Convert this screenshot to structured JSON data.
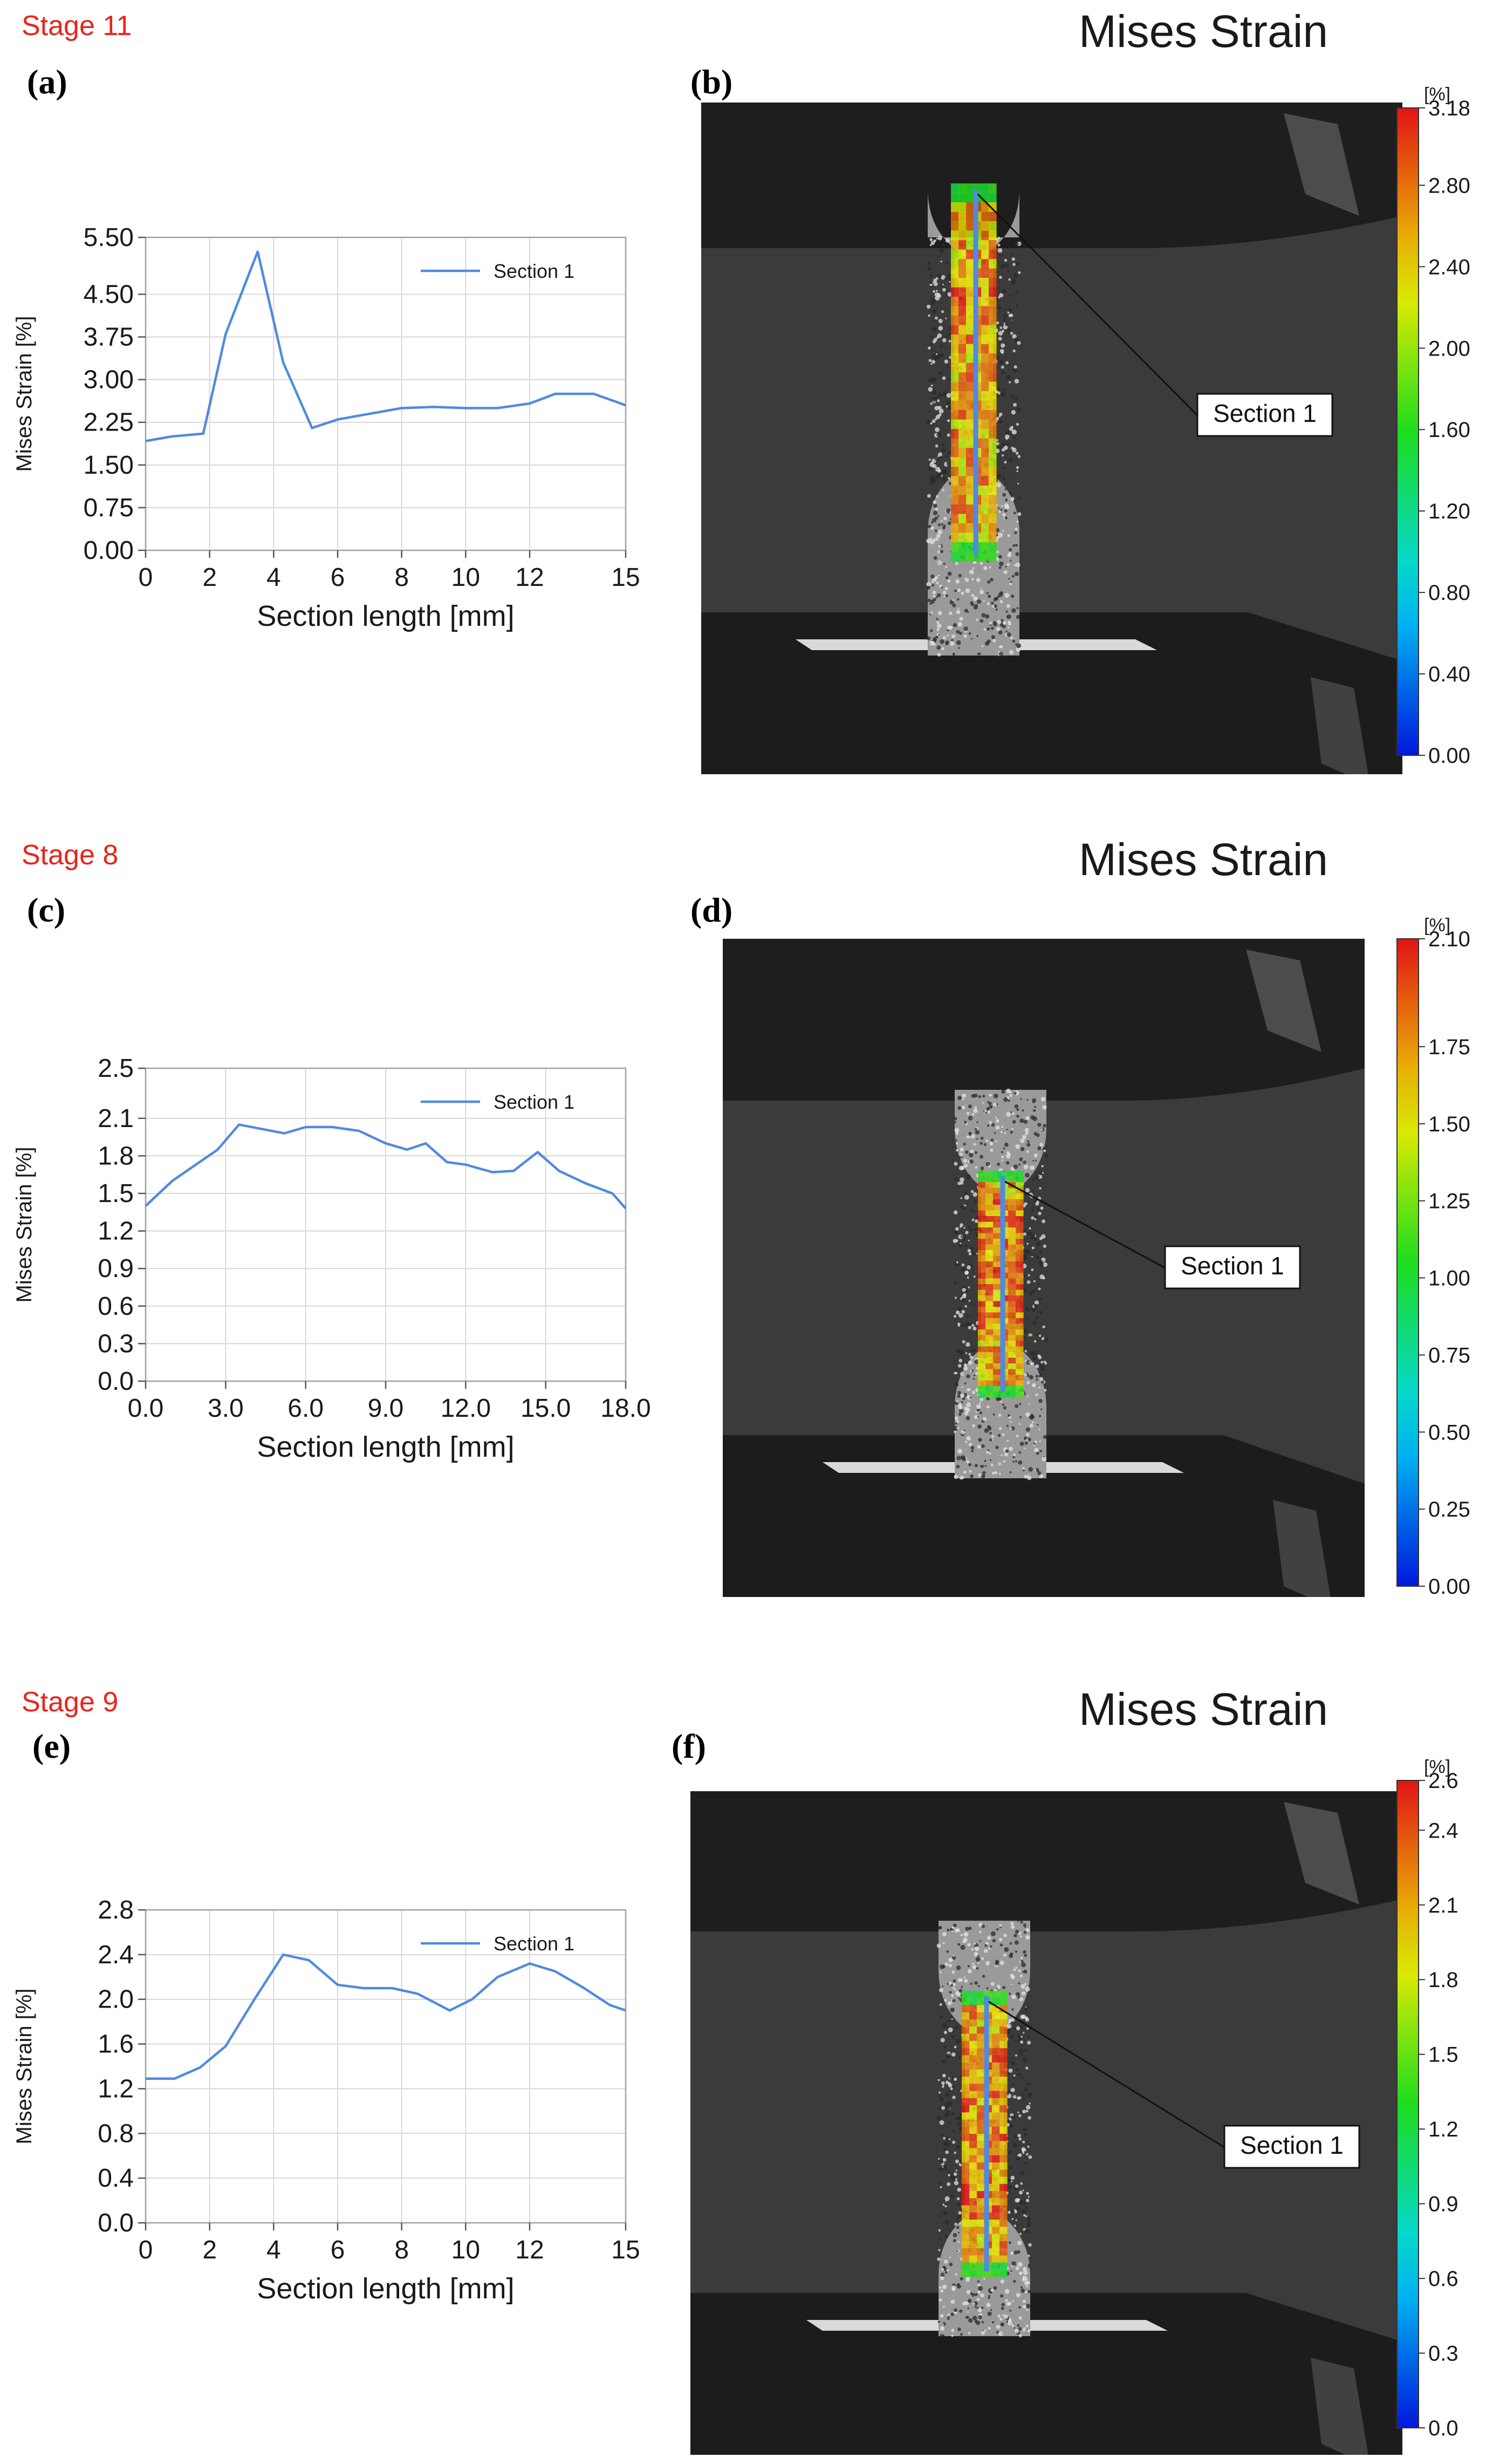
{
  "panels": [
    {
      "stage": "Stage 11",
      "chart_letter": "(a)",
      "image_letter": "(b)",
      "image_title": "Mises Strain",
      "section_callout": "Section 1",
      "colorbar": {
        "unit": "[%]",
        "ticks": [
          "3.18",
          "2.80",
          "2.40",
          "2.00",
          "1.60",
          "1.20",
          "0.80",
          "0.40",
          "0.00"
        ],
        "min": 0,
        "max": 3.18
      }
    },
    {
      "stage": "Stage 8",
      "chart_letter": "(c)",
      "image_letter": "(d)",
      "image_title": "Mises Strain",
      "section_callout": "Section 1",
      "colorbar": {
        "unit": "[%]",
        "ticks": [
          "2.10",
          "1.75",
          "1.50",
          "1.25",
          "1.00",
          "0.75",
          "0.50",
          "0.25",
          "0.00"
        ],
        "min": 0,
        "max": 2.1
      }
    },
    {
      "stage": "Stage 9",
      "chart_letter": "(e)",
      "image_letter": "(f)",
      "image_title": "Mises Strain",
      "section_callout": "Section 1",
      "colorbar": {
        "unit": "[%]",
        "ticks": [
          "2.6",
          "2.4",
          "2.1",
          "1.8",
          "1.5",
          "1.2",
          "0.9",
          "0.6",
          "0.3",
          "0.0"
        ],
        "min": 0,
        "max": 2.6
      }
    }
  ],
  "colors": {
    "line": "#4f8ae0",
    "stage_label": "#e8241c"
  },
  "chart_data": [
    {
      "type": "line",
      "xlabel": "Section length [mm]",
      "ylabel": "Mises Strain [%]",
      "xlim": [
        0,
        15
      ],
      "ylim": [
        0,
        5.5
      ],
      "xticks": [
        "0",
        "2",
        "4",
        "6",
        "8",
        "10",
        "12",
        "15"
      ],
      "xtick_values": [
        0,
        2,
        4,
        6,
        8,
        10,
        12,
        15
      ],
      "yticks": [
        "0.00",
        "0.75",
        "1.50",
        "2.25",
        "3.00",
        "3.75",
        "4.50",
        "5.50"
      ],
      "ytick_values": [
        0,
        0.75,
        1.5,
        2.25,
        3.0,
        3.75,
        4.5,
        5.5
      ],
      "legend_position": "top-right",
      "grid": true,
      "series": [
        {
          "name": "Section 1",
          "x": [
            0,
            0.8,
            1.8,
            2.5,
            3.5,
            4.3,
            5.2,
            6.0,
            7.0,
            8.0,
            9.0,
            10.0,
            11.0,
            12.0,
            12.8,
            14.0,
            15.0
          ],
          "y": [
            1.92,
            2.0,
            2.05,
            3.8,
            5.25,
            3.3,
            2.15,
            2.3,
            2.4,
            2.5,
            2.52,
            2.5,
            2.5,
            2.58,
            2.75,
            2.75,
            2.55
          ]
        }
      ]
    },
    {
      "type": "line",
      "xlabel": "Section length [mm]",
      "ylabel": "Mises Strain [%]",
      "xlim": [
        0,
        18
      ],
      "ylim": [
        0,
        2.5
      ],
      "xticks": [
        "0.0",
        "3.0",
        "6.0",
        "9.0",
        "12.0",
        "15.0",
        "18.0"
      ],
      "xtick_values": [
        0,
        3,
        6,
        9,
        12,
        15,
        18
      ],
      "yticks": [
        "0.0",
        "0.3",
        "0.6",
        "0.9",
        "1.2",
        "1.5",
        "1.8",
        "2.1",
        "2.5"
      ],
      "ytick_values": [
        0,
        0.3,
        0.6,
        0.9,
        1.2,
        1.5,
        1.8,
        2.1,
        2.5
      ],
      "legend_position": "top-right",
      "grid": true,
      "series": [
        {
          "name": "Section 1",
          "x": [
            0,
            1.0,
            2.7,
            3.5,
            5.2,
            6.0,
            7.0,
            8.0,
            9.0,
            9.8,
            10.5,
            11.3,
            12.0,
            13.0,
            13.8,
            14.7,
            15.5,
            16.5,
            17.5,
            18.0
          ],
          "y": [
            1.4,
            1.6,
            1.85,
            2.05,
            1.98,
            2.03,
            2.03,
            2.0,
            1.9,
            1.85,
            1.9,
            1.75,
            1.73,
            1.67,
            1.68,
            1.83,
            1.68,
            1.58,
            1.5,
            1.38
          ]
        }
      ]
    },
    {
      "type": "line",
      "xlabel": "Section length [mm]",
      "ylabel": "Mises Strain [%]",
      "xlim": [
        0,
        15
      ],
      "ylim": [
        0,
        2.8
      ],
      "xticks": [
        "0",
        "2",
        "4",
        "6",
        "8",
        "10",
        "12",
        "15"
      ],
      "xtick_values": [
        0,
        2,
        4,
        6,
        8,
        10,
        12,
        15
      ],
      "yticks": [
        "0.0",
        "0.4",
        "0.8",
        "1.2",
        "1.6",
        "2.0",
        "2.4",
        "2.8"
      ],
      "ytick_values": [
        0,
        0.4,
        0.8,
        1.2,
        1.6,
        2.0,
        2.4,
        2.8
      ],
      "legend_position": "top-right",
      "grid": true,
      "series": [
        {
          "name": "Section 1",
          "x": [
            0,
            0.9,
            1.7,
            2.5,
            3.4,
            4.3,
            5.1,
            6.0,
            6.8,
            7.7,
            8.5,
            9.5,
            10.2,
            11.0,
            12.0,
            12.8,
            13.7,
            14.5,
            15.0
          ],
          "y": [
            1.29,
            1.29,
            1.39,
            1.58,
            2.0,
            2.4,
            2.35,
            2.13,
            2.1,
            2.1,
            2.05,
            1.9,
            2.0,
            2.2,
            2.32,
            2.25,
            2.1,
            1.95,
            1.9
          ]
        }
      ]
    }
  ]
}
